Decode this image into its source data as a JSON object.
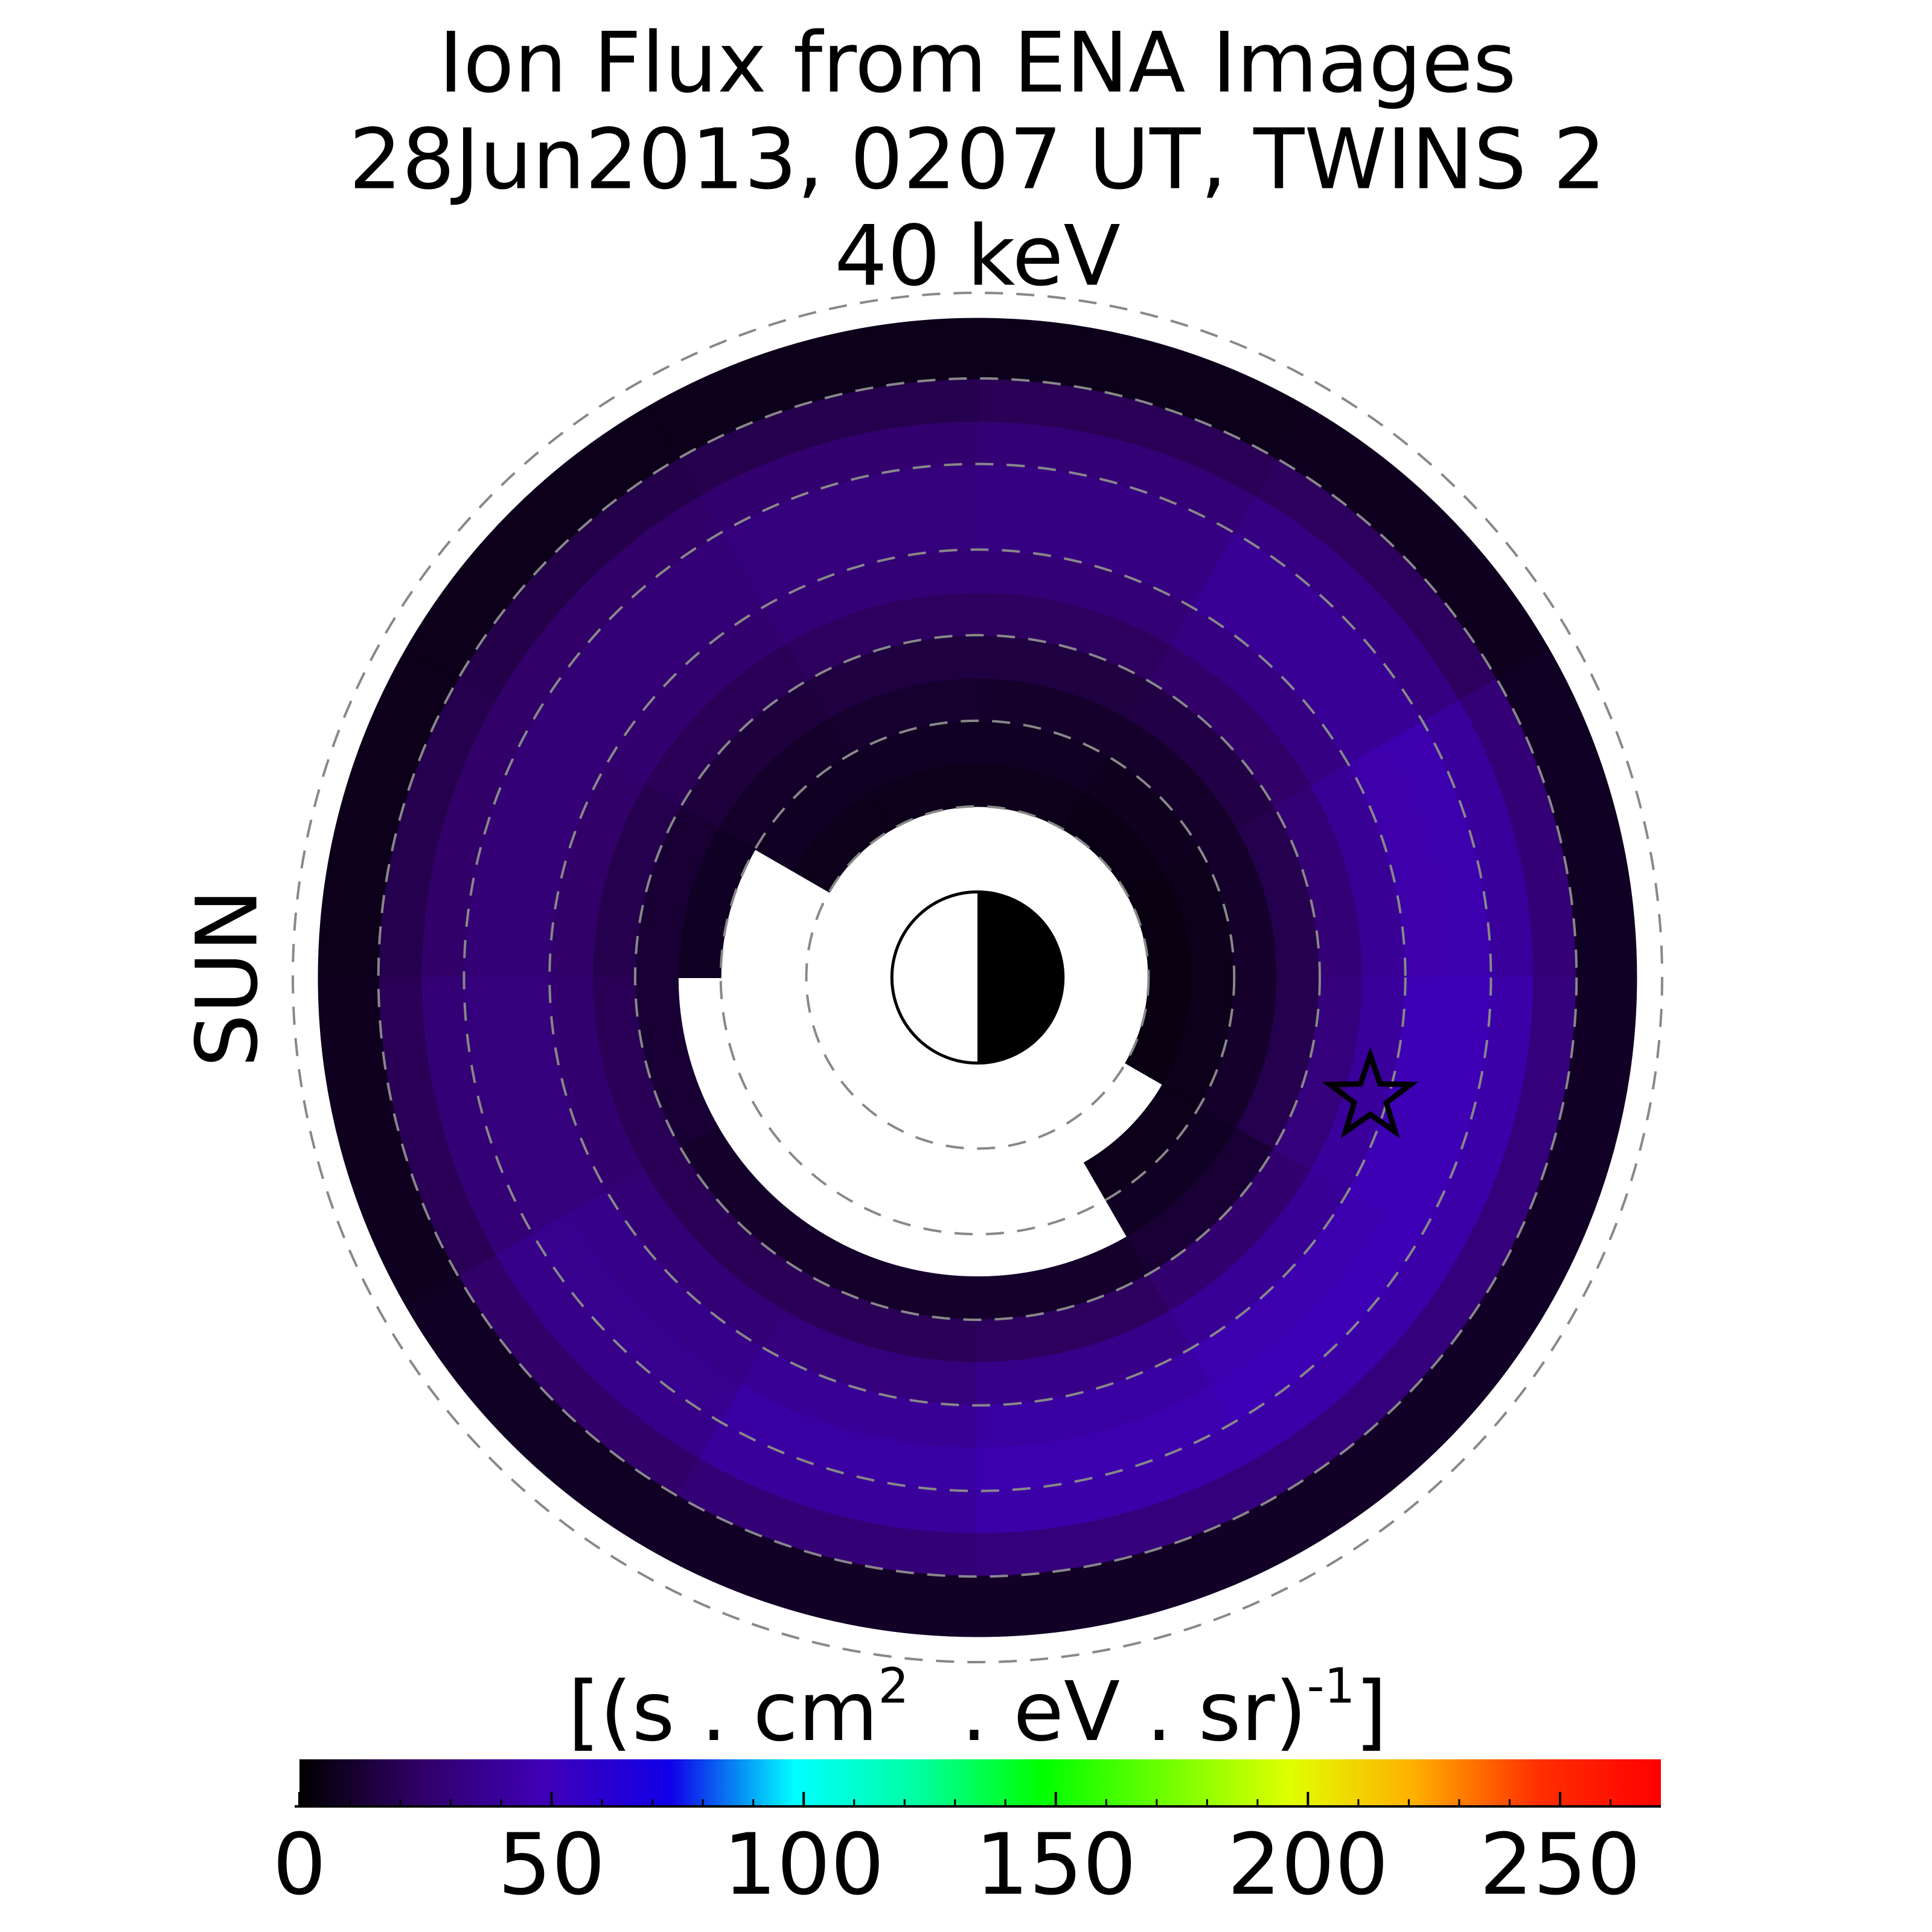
{
  "chart_data": {
    "type": "polar_heatmap",
    "title": [
      "Ion Flux from  ENA Images",
      "28Jun2013, 0207 UT,  TWINS 2",
      "40 keV"
    ],
    "sun_label": "SUN",
    "sun_color": "#f5a000",
    "rlim": [
      0,
      8
    ],
    "rings": [
      2,
      3,
      4,
      5,
      6,
      7,
      8
    ],
    "r_edges": [
      2,
      2.5,
      3,
      3.5,
      4,
      4.5,
      5,
      5.5,
      6,
      6.5,
      7,
      7.7
    ],
    "theta_edges": [
      0,
      30,
      60,
      90,
      120,
      150,
      180,
      210,
      240,
      270,
      300,
      330,
      360
    ],
    "values": [
      [
        4,
        5,
        6,
        6,
        6,
        null,
        null,
        null,
        null,
        null,
        null,
        4
      ],
      [
        6,
        7,
        8,
        8,
        8,
        null,
        null,
        null,
        null,
        null,
        6,
        6
      ],
      [
        10,
        10,
        10,
        11,
        10,
        8,
        null,
        null,
        null,
        null,
        8,
        10
      ],
      [
        18,
        16,
        15,
        15,
        14,
        12,
        12,
        10,
        10,
        10,
        12,
        18
      ],
      [
        28,
        24,
        22,
        22,
        20,
        18,
        20,
        20,
        20,
        22,
        26,
        30
      ],
      [
        38,
        32,
        28,
        28,
        26,
        24,
        26,
        28,
        30,
        34,
        38,
        40
      ],
      [
        45,
        38,
        32,
        30,
        28,
        28,
        30,
        34,
        38,
        42,
        46,
        48
      ],
      [
        46,
        38,
        32,
        30,
        28,
        28,
        30,
        36,
        42,
        46,
        48,
        48
      ],
      [
        40,
        32,
        28,
        26,
        24,
        24,
        28,
        34,
        40,
        44,
        44,
        44
      ],
      [
        28,
        22,
        20,
        18,
        17,
        18,
        20,
        24,
        28,
        30,
        30,
        30
      ],
      [
        8,
        7,
        6,
        6,
        6,
        6,
        7,
        8,
        9,
        9,
        9,
        9
      ]
    ],
    "star": {
      "r": 4.8,
      "theta": -17
    },
    "colormap": [
      "#000000",
      "#32006a",
      "#3f00b8",
      "#1000e8",
      "#00ffff",
      "#00ffa0",
      "#00ff00",
      "#70ff00",
      "#e0ff00",
      "#ffb000",
      "#ff3000",
      "#ff0000"
    ],
    "clim": [
      0,
      270
    ],
    "cticks": [
      0,
      50,
      100,
      150,
      200,
      250
    ],
    "cminorticks": [
      10,
      20,
      30,
      40,
      60,
      70,
      80,
      90,
      110,
      120,
      130,
      140,
      160,
      170,
      180,
      190,
      210,
      220,
      230,
      240,
      260
    ],
    "colorbar_label": [
      "[(s . cm",
      "2",
      "  . eV . sr)",
      "-1",
      "]"
    ]
  }
}
